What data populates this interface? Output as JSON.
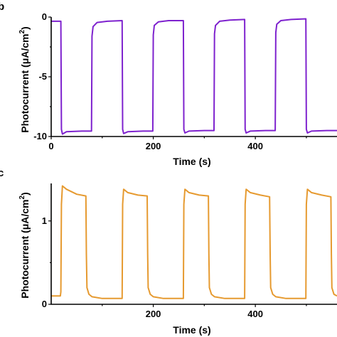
{
  "panels": [
    {
      "label": "b",
      "ylabel_text": "Photocurrent (μA/cm",
      "ylabel_sup": "2",
      "ylabel_close": ")"
    },
    {
      "label": "c",
      "ylabel_text": "Photocurrent (μA/cm",
      "ylabel_sup": "2",
      "ylabel_close": ")"
    }
  ],
  "chart_data": [
    {
      "type": "line",
      "title": "",
      "xlabel": "Time (s)",
      "ylabel": "Photocurrent (μA/cm2)",
      "xlim": [
        0,
        560
      ],
      "ylim": [
        -10,
        0
      ],
      "xticks": [
        0,
        200,
        400
      ],
      "yticks": [
        0,
        -5,
        -10
      ],
      "color": "#7e22ce",
      "grid": false,
      "light_on_off": {
        "on_times": [
          20,
          140,
          260,
          380,
          500
        ],
        "off_times": [
          80,
          200,
          320,
          440
        ],
        "dark_level": -0.35,
        "light_level": -9.6,
        "initial_spike": -9.8
      },
      "series": [
        {
          "x": [
            0,
            19,
            20,
            22,
            30,
            60,
            79,
            80,
            82,
            90,
            110,
            139,
            140,
            142,
            150,
            180,
            199,
            200,
            202,
            210,
            230,
            259,
            260,
            262,
            270,
            300,
            319,
            320,
            322,
            330,
            350,
            379,
            380,
            382,
            390,
            420,
            439,
            440,
            442,
            450,
            470,
            499,
            500,
            502,
            510,
            540,
            560
          ],
          "values": [
            -0.35,
            -0.35,
            -9.4,
            -9.8,
            -9.6,
            -9.55,
            -9.55,
            -1.6,
            -0.8,
            -0.45,
            -0.35,
            -0.3,
            -9.4,
            -9.75,
            -9.6,
            -9.55,
            -9.55,
            -1.5,
            -0.7,
            -0.4,
            -0.3,
            -0.3,
            -9.4,
            -9.7,
            -9.55,
            -9.5,
            -9.5,
            -1.4,
            -0.7,
            -0.35,
            -0.25,
            -0.2,
            -9.4,
            -9.7,
            -9.55,
            -9.5,
            -9.5,
            -1.3,
            -0.6,
            -0.3,
            -0.2,
            -0.15,
            -9.4,
            -9.7,
            -9.55,
            -9.5,
            -9.5
          ]
        }
      ]
    },
    {
      "type": "line",
      "title": "",
      "xlabel": "Time (s)",
      "ylabel": "Photocurrent (μA/cm2)",
      "xlim": [
        0,
        560
      ],
      "ylim": [
        0,
        1.45
      ],
      "xticks": [
        200,
        400
      ],
      "yticks": [
        0,
        1
      ],
      "color": "#e69a30",
      "grid": false,
      "light_on_off": {
        "on_times": [
          20,
          140,
          260,
          380,
          500
        ],
        "off_times": [
          70,
          190,
          310,
          430,
          560
        ],
        "dark_level": 0.07,
        "light_level": 1.3,
        "initial_spike": 1.42
      },
      "series": [
        {
          "x": [
            0,
            18,
            19,
            20,
            22,
            30,
            50,
            68,
            69,
            70,
            74,
            80,
            100,
            139,
            140,
            142,
            150,
            170,
            188,
            189,
            190,
            194,
            200,
            220,
            259,
            260,
            262,
            270,
            290,
            308,
            309,
            310,
            314,
            320,
            340,
            379,
            380,
            382,
            390,
            410,
            428,
            429,
            430,
            434,
            440,
            460,
            499,
            500,
            502,
            510,
            530,
            548,
            549,
            550,
            554,
            560
          ],
          "values": [
            0.1,
            0.1,
            0.15,
            1.2,
            1.42,
            1.38,
            1.32,
            1.3,
            0.6,
            0.2,
            0.12,
            0.09,
            0.07,
            0.07,
            1.2,
            1.38,
            1.34,
            1.31,
            1.3,
            0.6,
            0.2,
            0.12,
            0.09,
            0.07,
            0.07,
            1.2,
            1.38,
            1.34,
            1.31,
            1.3,
            0.6,
            0.2,
            0.12,
            0.09,
            0.07,
            0.07,
            1.2,
            1.38,
            1.34,
            1.31,
            1.29,
            0.6,
            0.2,
            0.12,
            0.09,
            0.07,
            0.07,
            1.2,
            1.38,
            1.34,
            1.31,
            1.29,
            0.6,
            0.2,
            0.12,
            0.1
          ]
        }
      ]
    }
  ]
}
